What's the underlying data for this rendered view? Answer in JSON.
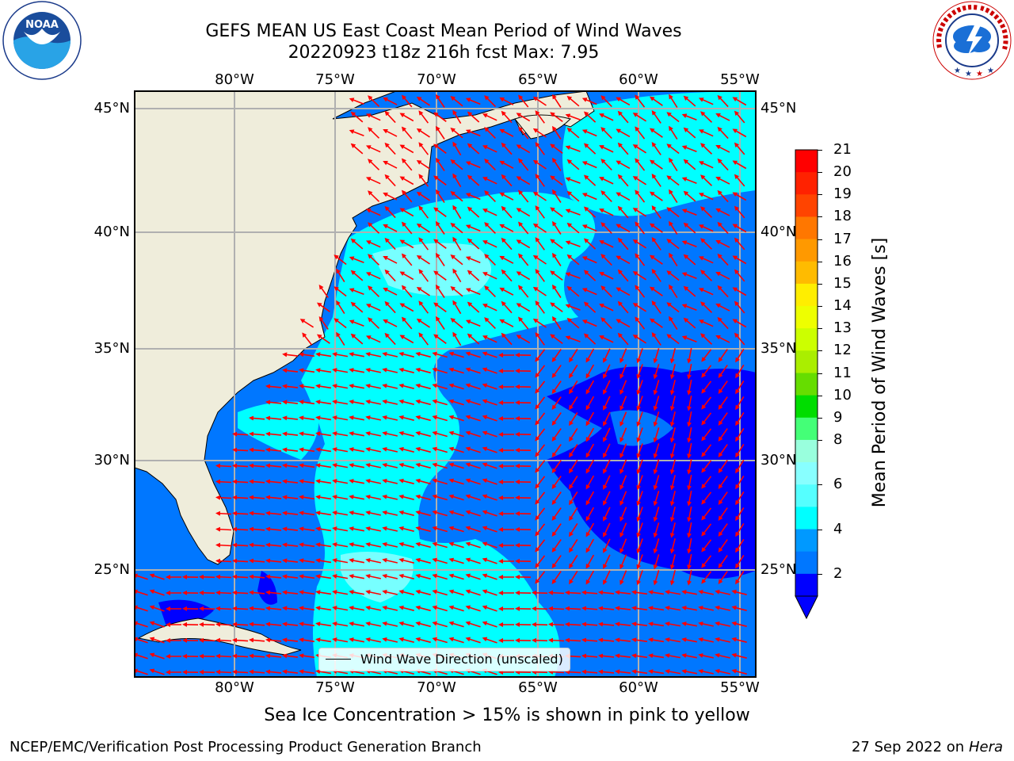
{
  "title": {
    "line1": "GEFS MEAN US East Coast Mean Period of Wind Waves",
    "line2": "20220923 t18z 216h fcst   Max: 7.95"
  },
  "axes": {
    "lon_labels": [
      "80°W",
      "75°W",
      "70°W",
      "65°W",
      "60°W",
      "55°W"
    ],
    "lat_labels": [
      "45°N",
      "40°N",
      "35°N",
      "30°N",
      "25°N"
    ]
  },
  "legend": {
    "label": "Wind Wave Direction (unscaled)"
  },
  "colorbar": {
    "label": "Mean Period of Wind Waves [s]",
    "ticks": [
      "21",
      "20",
      "19",
      "18",
      "17",
      "16",
      "15",
      "14",
      "13",
      "12",
      "11",
      "10",
      "9",
      "8",
      "7",
      "6",
      "5",
      "4",
      "3",
      "2"
    ],
    "shown_ticks": [
      "21",
      "20",
      "19",
      "18",
      "17",
      "16",
      "15",
      "14",
      "13",
      "12",
      "11",
      "10",
      "9",
      "8",
      "6",
      "4",
      "2"
    ],
    "colors": [
      "#ff0000",
      "#ff2200",
      "#ff4400",
      "#ff7700",
      "#ff9900",
      "#ffbb00",
      "#ffee00",
      "#eeff00",
      "#ccff00",
      "#aaee00",
      "#66dd00",
      "#00dd00",
      "#44ff77",
      "#99ffdd",
      "#88ffff",
      "#55ffff",
      "#00ffff",
      "#0099ff",
      "#0077ff",
      "#0000ff"
    ]
  },
  "colors": {
    "land": "#efeddb",
    "level_2_4": "#0077ff",
    "level_4_6": "#00ffff",
    "level_6_8": "#77ffff",
    "below_2": "#0000ff",
    "arrow": "#ff0000",
    "grid": "#b0b0b0"
  },
  "footer": {
    "note": "Sea Ice Concentration > 15% is shown in pink to yellow",
    "credit_left": "NCEP/EMC/Verification Post Processing Product Generation Branch",
    "credit_date": "27 Sep 2022 on",
    "credit_host": "Hera"
  },
  "logos": {
    "noaa": "NOAA",
    "noaa_ring": "NATIONAL OCEANIC AND ATMOSPHERIC ADMINISTRATION · U.S. DEPARTMENT OF COMMERCE",
    "nws_ring": "NATIONAL WEATHER SERVICE"
  }
}
